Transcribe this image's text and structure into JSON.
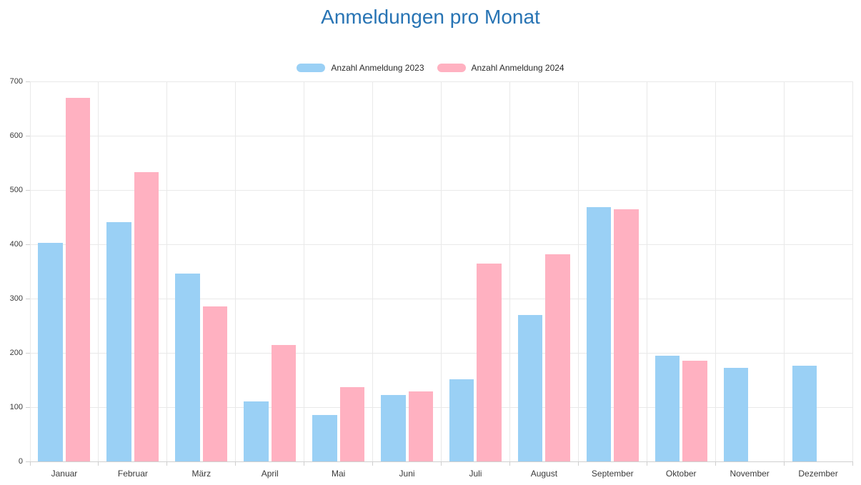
{
  "title": "Anmeldungen pro Monat",
  "colors": {
    "title": "#2874b4",
    "series_2023": "#9ad0f5",
    "series_2024": "#ffb1c1",
    "gridline": "#e9e9e9",
    "axis": "#cfcfcf",
    "tick_text": "#3a3a3a"
  },
  "chart_data": {
    "type": "bar",
    "title": "Anmeldungen pro Monat",
    "categories": [
      "Januar",
      "Februar",
      "März",
      "April",
      "Mai",
      "Juni",
      "Juli",
      "August",
      "September",
      "Oktober",
      "November",
      "Dezember"
    ],
    "series": [
      {
        "name": "Anzahl Anmeldung 2023",
        "color": "#9ad0f5",
        "values": [
          403,
          441,
          346,
          110,
          85,
          122,
          151,
          270,
          469,
          195,
          173,
          176
        ]
      },
      {
        "name": "Anzahl Anmeldung 2024",
        "color": "#ffb1c1",
        "values": [
          670,
          533,
          286,
          214,
          137,
          129,
          365,
          381,
          465,
          185,
          0,
          0
        ]
      }
    ],
    "xlabel": "",
    "ylabel": "",
    "ylim": [
      0,
      700
    ],
    "yticks": [
      0,
      100,
      200,
      300,
      400,
      500,
      600,
      700
    ],
    "grid": true,
    "legend_position": "top"
  }
}
